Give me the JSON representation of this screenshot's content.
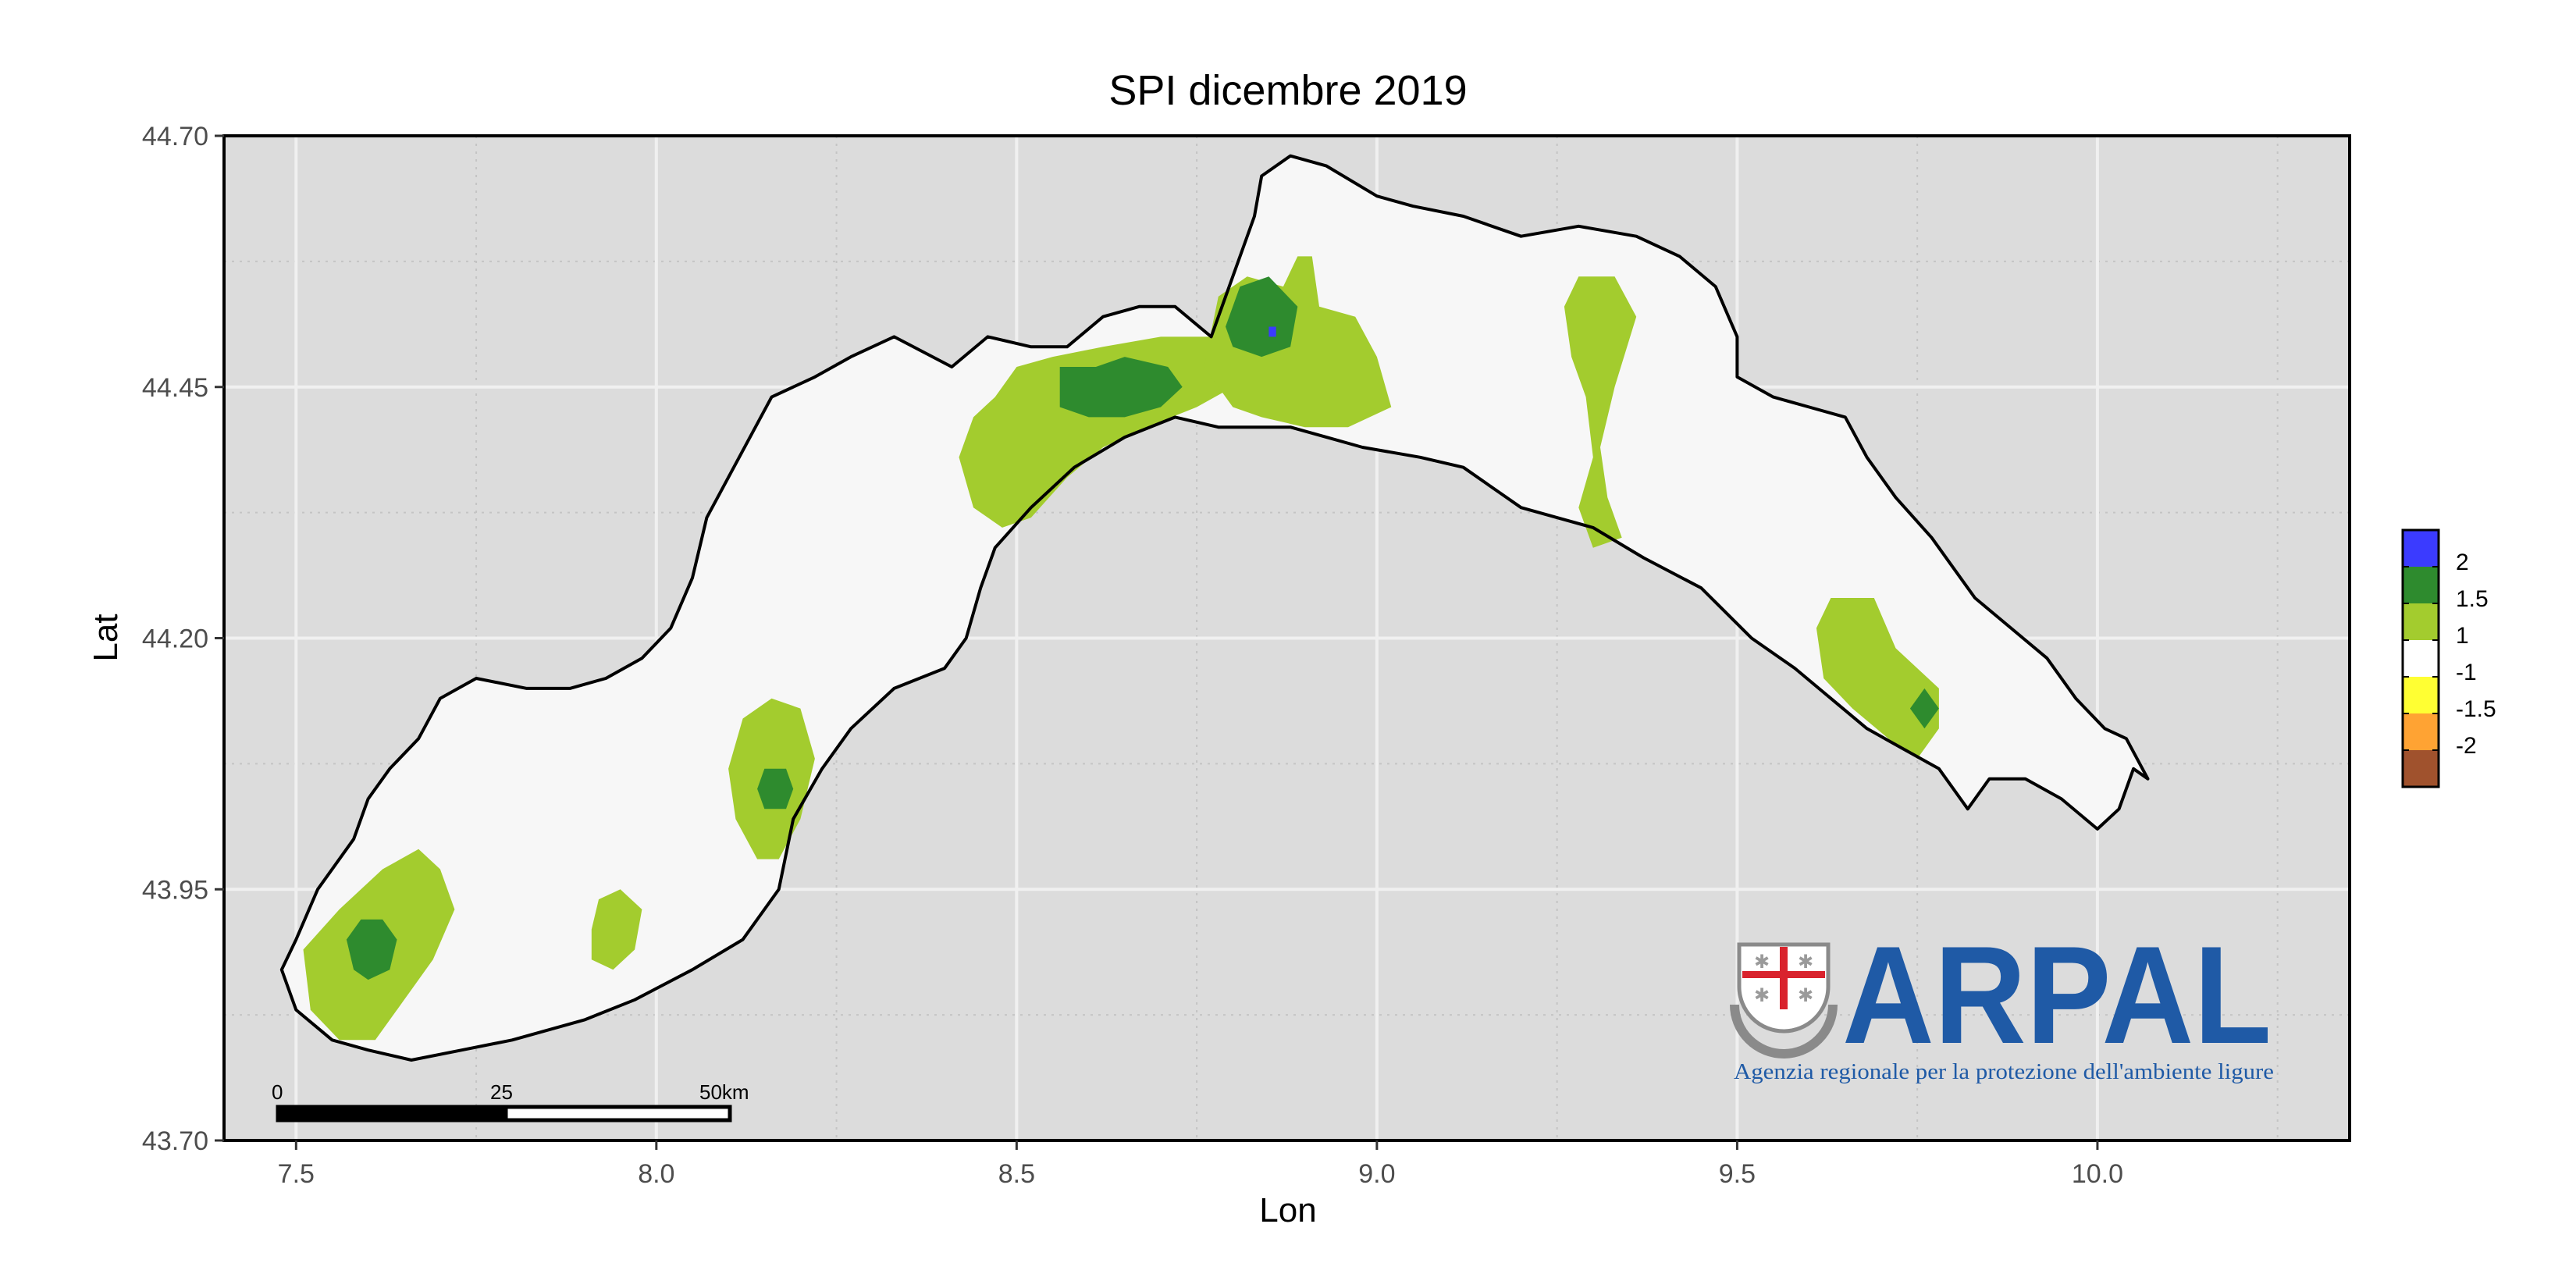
{
  "chart_data": {
    "type": "heatmap",
    "title": "SPI dicembre 2019",
    "xlabel": "Lon",
    "ylabel": "Lat",
    "xlim": [
      7.4,
      10.35
    ],
    "ylim": [
      43.7,
      44.7
    ],
    "x_ticks": [
      {
        "value": 7.5,
        "label": "7.5"
      },
      {
        "value": 8.0,
        "label": "8.0"
      },
      {
        "value": 8.5,
        "label": "8.5"
      },
      {
        "value": 9.0,
        "label": "9.0"
      },
      {
        "value": 9.5,
        "label": "9.5"
      },
      {
        "value": 10.0,
        "label": "10.0"
      }
    ],
    "y_ticks": [
      {
        "value": 43.7,
        "label": "43.70"
      },
      {
        "value": 43.95,
        "label": "43.95"
      },
      {
        "value": 44.2,
        "label": "44.20"
      },
      {
        "value": 44.45,
        "label": "44.45"
      },
      {
        "value": 44.7,
        "label": "44.70"
      }
    ],
    "grid": true,
    "panel_background": "#dcdcdc",
    "region_fill": "#f7f7f7",
    "legend": {
      "placement": "right",
      "classes": [
        {
          "color": "#3b3bff",
          "label": "2"
        },
        {
          "color": "#2e8b2e",
          "label": "1.5"
        },
        {
          "color": "#a3cc2e",
          "label": "1"
        },
        {
          "color": "#ffffff",
          "label": "-1"
        },
        {
          "color": "#ffff33",
          "label": "-1.5"
        },
        {
          "color": "#ffa333",
          "label": "-2"
        },
        {
          "color": "#a0522d",
          "label": ""
        }
      ]
    },
    "scale_bar": {
      "labels": [
        "0",
        "25",
        "50km"
      ]
    },
    "region_outline": [
      [
        7.5,
        43.83
      ],
      [
        7.55,
        43.8
      ],
      [
        7.6,
        43.79
      ],
      [
        7.66,
        43.78
      ],
      [
        7.73,
        43.79
      ],
      [
        7.8,
        43.8
      ],
      [
        7.9,
        43.82
      ],
      [
        7.97,
        43.84
      ],
      [
        8.05,
        43.87
      ],
      [
        8.12,
        43.9
      ],
      [
        8.17,
        43.95
      ],
      [
        8.19,
        44.02
      ],
      [
        8.23,
        44.07
      ],
      [
        8.27,
        44.11
      ],
      [
        8.33,
        44.15
      ],
      [
        8.4,
        44.17
      ],
      [
        8.43,
        44.2
      ],
      [
        8.45,
        44.25
      ],
      [
        8.47,
        44.29
      ],
      [
        8.52,
        44.33
      ],
      [
        8.58,
        44.37
      ],
      [
        8.65,
        44.4
      ],
      [
        8.72,
        44.42
      ],
      [
        8.78,
        44.41
      ],
      [
        8.84,
        44.41
      ],
      [
        8.88,
        44.41
      ],
      [
        8.93,
        44.4
      ],
      [
        8.98,
        44.39
      ],
      [
        9.06,
        44.38
      ],
      [
        9.12,
        44.37
      ],
      [
        9.2,
        44.33
      ],
      [
        9.25,
        44.32
      ],
      [
        9.3,
        44.31
      ],
      [
        9.37,
        44.28
      ],
      [
        9.45,
        44.25
      ],
      [
        9.52,
        44.2
      ],
      [
        9.58,
        44.17
      ],
      [
        9.63,
        44.14
      ],
      [
        9.68,
        44.11
      ],
      [
        9.73,
        44.09
      ],
      [
        9.78,
        44.07
      ],
      [
        9.82,
        44.03
      ],
      [
        9.85,
        44.06
      ],
      [
        9.9,
        44.06
      ],
      [
        9.95,
        44.04
      ],
      [
        10.0,
        44.01
      ],
      [
        10.03,
        44.03
      ],
      [
        10.05,
        44.07
      ],
      [
        10.07,
        44.06
      ],
      [
        10.04,
        44.1
      ],
      [
        10.01,
        44.11
      ],
      [
        9.97,
        44.14
      ],
      [
        9.93,
        44.18
      ],
      [
        9.88,
        44.21
      ],
      [
        9.83,
        44.24
      ],
      [
        9.8,
        44.27
      ],
      [
        9.77,
        44.3
      ],
      [
        9.72,
        44.34
      ],
      [
        9.68,
        44.38
      ],
      [
        9.65,
        44.42
      ],
      [
        9.6,
        44.43
      ],
      [
        9.55,
        44.44
      ],
      [
        9.5,
        44.46
      ],
      [
        9.5,
        44.5
      ],
      [
        9.47,
        44.55
      ],
      [
        9.42,
        44.58
      ],
      [
        9.36,
        44.6
      ],
      [
        9.28,
        44.61
      ],
      [
        9.2,
        44.6
      ],
      [
        9.12,
        44.62
      ],
      [
        9.05,
        44.63
      ],
      [
        9.0,
        44.64
      ],
      [
        8.93,
        44.67
      ],
      [
        8.88,
        44.68
      ],
      [
        8.84,
        44.66
      ],
      [
        8.83,
        44.62
      ],
      [
        8.8,
        44.56
      ],
      [
        8.77,
        44.5
      ],
      [
        8.72,
        44.53
      ],
      [
        8.67,
        44.53
      ],
      [
        8.62,
        44.52
      ],
      [
        8.57,
        44.49
      ],
      [
        8.52,
        44.49
      ],
      [
        8.46,
        44.5
      ],
      [
        8.41,
        44.47
      ],
      [
        8.33,
        44.5
      ],
      [
        8.27,
        44.48
      ],
      [
        8.22,
        44.46
      ],
      [
        8.16,
        44.44
      ],
      [
        8.1,
        44.36
      ],
      [
        8.07,
        44.32
      ],
      [
        8.05,
        44.26
      ],
      [
        8.02,
        44.21
      ],
      [
        7.98,
        44.18
      ],
      [
        7.93,
        44.16
      ],
      [
        7.88,
        44.15
      ],
      [
        7.82,
        44.15
      ],
      [
        7.75,
        44.16
      ],
      [
        7.7,
        44.14
      ],
      [
        7.67,
        44.1
      ],
      [
        7.63,
        44.07
      ],
      [
        7.6,
        44.04
      ],
      [
        7.58,
        44.0
      ],
      [
        7.53,
        43.95
      ],
      [
        7.5,
        43.9
      ],
      [
        7.48,
        43.87
      ]
    ],
    "spi_areas": [
      {
        "value_class": "1",
        "color": "#a3cc2e",
        "points": [
          [
            7.51,
            43.89
          ],
          [
            7.56,
            43.93
          ],
          [
            7.62,
            43.97
          ],
          [
            7.67,
            43.99
          ],
          [
            7.7,
            43.97
          ],
          [
            7.72,
            43.93
          ],
          [
            7.69,
            43.88
          ],
          [
            7.65,
            43.84
          ],
          [
            7.61,
            43.8
          ],
          [
            7.56,
            43.8
          ],
          [
            7.52,
            43.83
          ]
        ]
      },
      {
        "value_class": "1.5",
        "color": "#2e8b2e",
        "points": [
          [
            7.57,
            43.9
          ],
          [
            7.59,
            43.92
          ],
          [
            7.62,
            43.92
          ],
          [
            7.64,
            43.9
          ],
          [
            7.63,
            43.87
          ],
          [
            7.6,
            43.86
          ],
          [
            7.58,
            43.87
          ]
        ]
      },
      {
        "value_class": "1",
        "color": "#a3cc2e",
        "points": [
          [
            7.91,
            43.91
          ],
          [
            7.92,
            43.94
          ],
          [
            7.95,
            43.95
          ],
          [
            7.98,
            43.93
          ],
          [
            7.97,
            43.89
          ],
          [
            7.94,
            43.87
          ],
          [
            7.91,
            43.88
          ]
        ]
      },
      {
        "value_class": "1",
        "color": "#a3cc2e",
        "points": [
          [
            8.1,
            44.07
          ],
          [
            8.12,
            44.12
          ],
          [
            8.16,
            44.14
          ],
          [
            8.2,
            44.13
          ],
          [
            8.22,
            44.08
          ],
          [
            8.2,
            44.02
          ],
          [
            8.17,
            43.98
          ],
          [
            8.14,
            43.98
          ],
          [
            8.11,
            44.02
          ]
        ]
      },
      {
        "value_class": "1.5",
        "color": "#2e8b2e",
        "points": [
          [
            8.14,
            44.05
          ],
          [
            8.15,
            44.07
          ],
          [
            8.18,
            44.07
          ],
          [
            8.19,
            44.05
          ],
          [
            8.18,
            44.03
          ],
          [
            8.15,
            44.03
          ]
        ]
      },
      {
        "value_class": "1",
        "color": "#a3cc2e",
        "points": [
          [
            8.42,
            44.38
          ],
          [
            8.44,
            44.42
          ],
          [
            8.47,
            44.44
          ],
          [
            8.5,
            44.47
          ],
          [
            8.55,
            44.48
          ],
          [
            8.62,
            44.49
          ],
          [
            8.7,
            44.5
          ],
          [
            8.78,
            44.5
          ],
          [
            8.82,
            44.49
          ],
          [
            8.8,
            44.45
          ],
          [
            8.75,
            44.43
          ],
          [
            8.68,
            44.41
          ],
          [
            8.62,
            44.39
          ],
          [
            8.57,
            44.36
          ],
          [
            8.52,
            44.32
          ],
          [
            8.48,
            44.31
          ],
          [
            8.44,
            44.33
          ]
        ]
      },
      {
        "value_class": "1.5",
        "color": "#2e8b2e",
        "points": [
          [
            8.56,
            44.43
          ],
          [
            8.56,
            44.47
          ],
          [
            8.61,
            44.47
          ],
          [
            8.65,
            44.48
          ],
          [
            8.71,
            44.47
          ],
          [
            8.73,
            44.45
          ],
          [
            8.7,
            44.43
          ],
          [
            8.65,
            44.42
          ],
          [
            8.6,
            44.42
          ]
        ]
      },
      {
        "value_class": "1",
        "color": "#a3cc2e",
        "points": [
          [
            8.76,
            44.47
          ],
          [
            8.78,
            44.54
          ],
          [
            8.82,
            44.56
          ],
          [
            8.87,
            44.55
          ],
          [
            8.89,
            44.58
          ],
          [
            8.91,
            44.58
          ],
          [
            8.92,
            44.53
          ],
          [
            8.97,
            44.52
          ],
          [
            9.0,
            44.48
          ],
          [
            9.02,
            44.43
          ],
          [
            8.96,
            44.41
          ],
          [
            8.9,
            44.41
          ],
          [
            8.84,
            44.42
          ],
          [
            8.8,
            44.43
          ]
        ]
      },
      {
        "value_class": "1.5",
        "color": "#2e8b2e",
        "points": [
          [
            8.79,
            44.51
          ],
          [
            8.81,
            44.55
          ],
          [
            8.85,
            44.56
          ],
          [
            8.89,
            44.53
          ],
          [
            8.88,
            44.49
          ],
          [
            8.84,
            44.48
          ],
          [
            8.8,
            44.49
          ]
        ]
      },
      {
        "value_class": "2",
        "color": "#3b3bff",
        "points": [
          [
            8.85,
            44.51
          ],
          [
            8.86,
            44.51
          ],
          [
            8.86,
            44.5
          ],
          [
            8.85,
            44.5
          ]
        ]
      },
      {
        "value_class": "1",
        "color": "#a3cc2e",
        "points": [
          [
            9.26,
            44.53
          ],
          [
            9.28,
            44.56
          ],
          [
            9.33,
            44.56
          ],
          [
            9.36,
            44.52
          ],
          [
            9.33,
            44.45
          ],
          [
            9.31,
            44.39
          ],
          [
            9.32,
            44.34
          ],
          [
            9.34,
            44.3
          ],
          [
            9.3,
            44.29
          ],
          [
            9.28,
            44.33
          ],
          [
            9.3,
            44.38
          ],
          [
            9.29,
            44.44
          ],
          [
            9.27,
            44.48
          ]
        ]
      },
      {
        "value_class": "1",
        "color": "#a3cc2e",
        "points": [
          [
            9.61,
            44.21
          ],
          [
            9.63,
            44.24
          ],
          [
            9.69,
            44.24
          ],
          [
            9.72,
            44.19
          ],
          [
            9.78,
            44.15
          ],
          [
            9.78,
            44.11
          ],
          [
            9.75,
            44.08
          ],
          [
            9.71,
            44.1
          ],
          [
            9.66,
            44.13
          ],
          [
            9.62,
            44.16
          ]
        ]
      },
      {
        "value_class": "1.5",
        "color": "#2e8b2e",
        "points": [
          [
            9.74,
            44.13
          ],
          [
            9.76,
            44.15
          ],
          [
            9.78,
            44.13
          ],
          [
            9.76,
            44.11
          ]
        ]
      }
    ]
  },
  "logo": {
    "name": "ARPAL",
    "subtitle": "Agenzia regionale per la protezione dell'ambiente ligure",
    "brand_color": "#1f5aa6",
    "shield_icon": "liguria-shield-icon"
  }
}
